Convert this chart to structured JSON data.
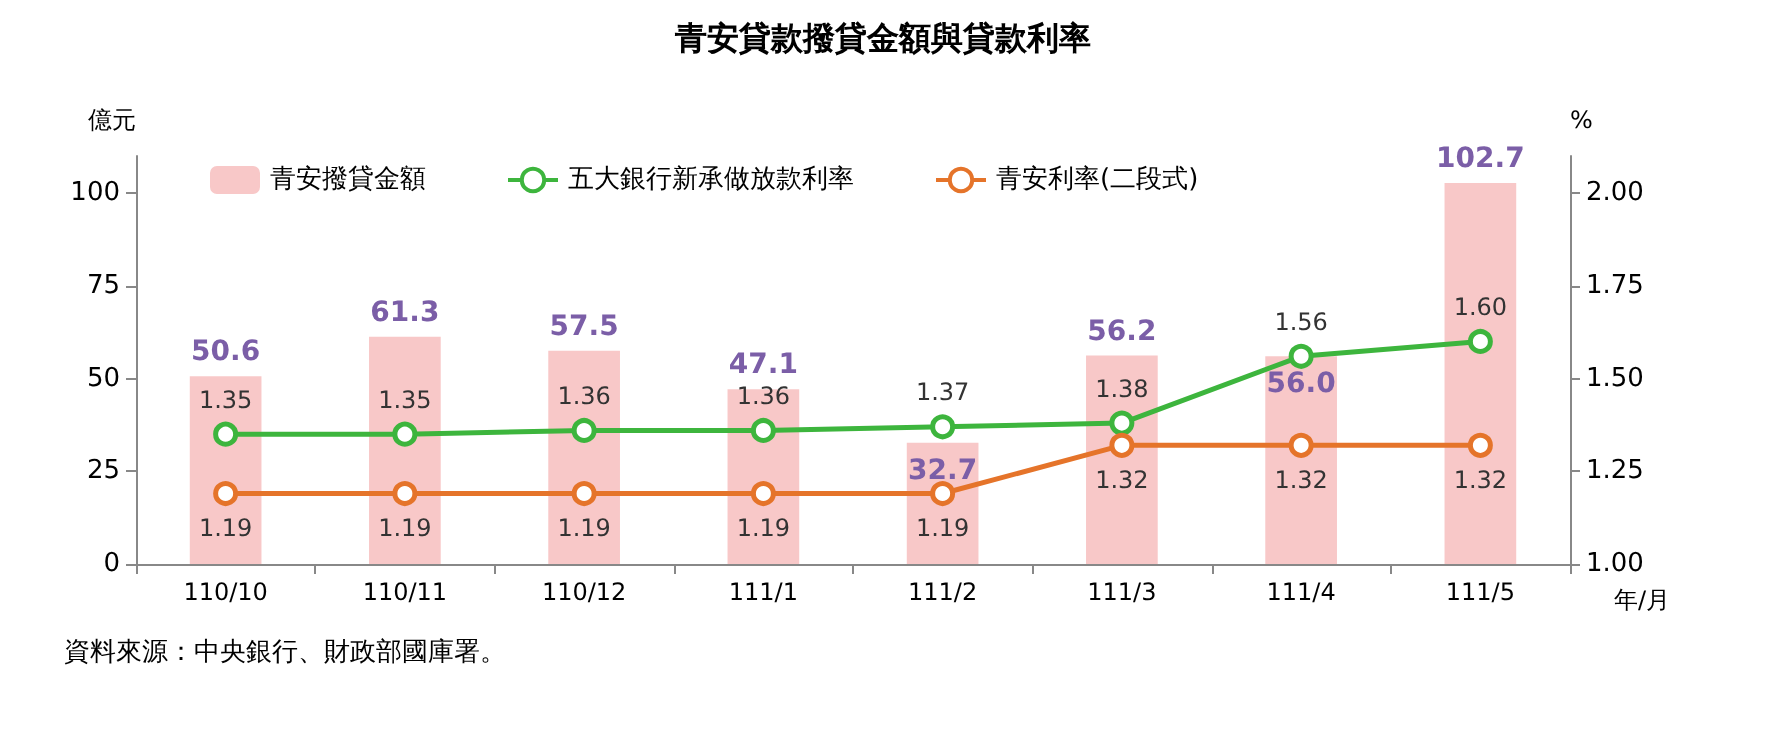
{
  "chart_data": {
    "type": "bar",
    "title": "青安貸款撥貸金額與貸款利率",
    "ylabel": "億元",
    "y2label": "%",
    "xlabel": "年/月",
    "categories": [
      "110/10",
      "110/11",
      "110/12",
      "111/1",
      "111/2",
      "111/3",
      "111/4",
      "111/5"
    ],
    "series": [
      {
        "name": "青安撥貸金額",
        "color": "#f8c8c8",
        "values": [
          50.6,
          61.3,
          57.5,
          47.1,
          32.7,
          56.2,
          56.0,
          102.7
        ],
        "value_labels": [
          "50.6",
          "61.3",
          "57.5",
          "47.1",
          "32.7",
          "56.2",
          "56.0",
          "102.7"
        ]
      },
      {
        "name": "五大銀行新承做放款利率",
        "type": "line",
        "axis": "y2",
        "color": "#3db53d",
        "values": [
          1.35,
          1.35,
          1.36,
          1.36,
          1.37,
          1.38,
          1.56,
          1.6
        ],
        "value_labels": [
          "1.35",
          "1.35",
          "1.36",
          "1.36",
          "1.37",
          "1.38",
          "1.56",
          "1.60"
        ]
      },
      {
        "name": "青安利率(二段式)",
        "type": "line",
        "axis": "y2",
        "color": "#e5742a",
        "values": [
          1.19,
          1.19,
          1.19,
          1.19,
          1.19,
          1.32,
          1.32,
          1.32
        ],
        "value_labels": [
          "1.19",
          "1.19",
          "1.19",
          "1.19",
          "1.19",
          "1.32",
          "1.32",
          "1.32"
        ]
      }
    ],
    "ylim": [
      0,
      110
    ],
    "yticks": [
      0,
      25,
      50,
      75,
      100
    ],
    "y2lim": [
      1,
      2.1
    ],
    "y2ticks": [
      {
        "value": 1,
        "label": "1.00"
      },
      {
        "value": 1.25,
        "label": "1.25"
      },
      {
        "value": 1.5,
        "label": "1.50"
      },
      {
        "value": 1.75,
        "label": "1.75"
      },
      {
        "value": 2,
        "label": "2.00"
      }
    ],
    "marker": "circle",
    "grid": false,
    "legend": "top",
    "annotations": [
      "資料來源：中央銀行、財政部國庫署。"
    ]
  }
}
